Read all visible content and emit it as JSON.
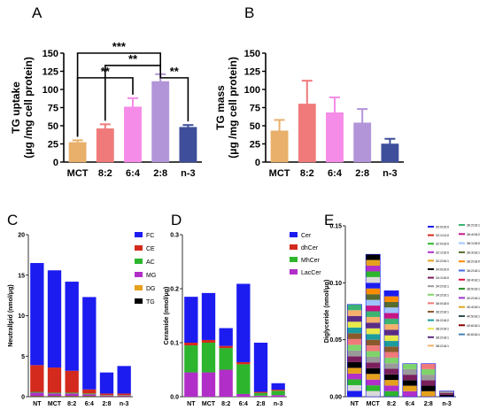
{
  "chart_data": [
    {
      "panel": "A",
      "type": "bar",
      "ylabel_lines": [
        "TG uptake",
        "(μg /mg cell protein)"
      ],
      "categories": [
        "MCT",
        "8:2",
        "6:4",
        "2:8",
        "n-3"
      ],
      "values": [
        27,
        46,
        76,
        111,
        48
      ],
      "errors": [
        3,
        6,
        12,
        10,
        3
      ],
      "colors": [
        "#E8B06A",
        "#F07A7A",
        "#F58CE8",
        "#B294D9",
        "#3E4E9A"
      ],
      "ylim": [
        0,
        150
      ],
      "yticks": [
        0,
        25,
        50,
        75,
        100,
        125,
        150
      ],
      "significance": [
        {
          "from": 0,
          "to": 3,
          "label": "***",
          "level": 150
        },
        {
          "from": 1,
          "to": 3,
          "label": "**",
          "level": 133
        },
        {
          "from": 0,
          "to": 2,
          "label": "**",
          "level": 116
        },
        {
          "from": 3,
          "to": 4,
          "label": "**",
          "level": 116
        }
      ]
    },
    {
      "panel": "B",
      "type": "bar",
      "ylabel_lines": [
        "TG mass",
        "(μg /mg cell protein)"
      ],
      "categories": [
        "MCT",
        "8:2",
        "6:4",
        "2:8",
        "n-3"
      ],
      "values": [
        43,
        80,
        68,
        54,
        25
      ],
      "errors": [
        15,
        32,
        21,
        19,
        7
      ],
      "colors": [
        "#E8B06A",
        "#F07A7A",
        "#F58CE8",
        "#B294D9",
        "#3E4E9A"
      ],
      "ylim": [
        0,
        150
      ],
      "yticks": [
        0,
        25,
        50,
        75,
        100,
        125,
        150
      ]
    },
    {
      "panel": "C",
      "type": "bar",
      "stacked": true,
      "ylabel": "Neutrallpid (nmol/μg)",
      "categories": [
        "NT",
        "MCT",
        "8:2",
        "6:4",
        "2:8",
        "n-3"
      ],
      "ylim": [
        0,
        20
      ],
      "yticks": [
        0,
        5,
        10,
        15,
        20
      ],
      "series": [
        {
          "name": "TG",
          "color": "#000000",
          "values": [
            0.05,
            0.05,
            0.05,
            0.05,
            0.02,
            0.02
          ]
        },
        {
          "name": "DG",
          "color": "#E6A11C",
          "values": [
            0.05,
            0.05,
            0.05,
            0.05,
            0.02,
            0.02
          ]
        },
        {
          "name": "MG",
          "color": "#B12FC8",
          "values": [
            0.4,
            0.3,
            0.3,
            0.2,
            0.1,
            0.1
          ]
        },
        {
          "name": "AC",
          "color": "#2DB52D",
          "values": [
            0.1,
            0.1,
            0.1,
            0.1,
            0.05,
            0.05
          ]
        },
        {
          "name": "CE",
          "color": "#D42A1E",
          "values": [
            3.3,
            3.1,
            2.7,
            0.5,
            0.2,
            0.2
          ]
        },
        {
          "name": "FC",
          "color": "#1C1CF0",
          "values": [
            12.6,
            12.0,
            11.0,
            11.4,
            2.6,
            3.4
          ]
        }
      ]
    },
    {
      "panel": "D",
      "type": "bar",
      "stacked": true,
      "ylabel": "Ceramide (nmol/μg)",
      "categories": [
        "NT",
        "MCT",
        "8:2",
        "6:4",
        "2:8",
        "n-3"
      ],
      "ylim": [
        0,
        0.3
      ],
      "yticks": [
        0.0,
        0.1,
        0.2,
        0.3
      ],
      "series": [
        {
          "name": "LacCer",
          "color": "#B12FC8",
          "values": [
            0.045,
            0.045,
            0.05,
            0.005,
            0.002,
            0.003
          ]
        },
        {
          "name": "MhCer",
          "color": "#2DB52D",
          "values": [
            0.05,
            0.055,
            0.04,
            0.055,
            0.005,
            0.008
          ]
        },
        {
          "name": "dhCer",
          "color": "#D42A1E",
          "values": [
            0.005,
            0.005,
            0.004,
            0.004,
            0.002,
            0.002
          ]
        },
        {
          "name": "Cer",
          "color": "#1C1CF0",
          "values": [
            0.085,
            0.087,
            0.033,
            0.145,
            0.091,
            0.012
          ]
        }
      ]
    },
    {
      "panel": "E",
      "type": "bar",
      "stacked": true,
      "ylabel": "Diglyceride (nmol/μg)",
      "categories": [
        "NT",
        "MCT",
        "8:2",
        "6:4",
        "2:8",
        "n-3"
      ],
      "ylim": [
        0,
        0.15
      ],
      "yticks": [
        0.0,
        0.05,
        0.1,
        0.15
      ],
      "totals": [
        0.081,
        0.125,
        0.093,
        0.029,
        0.029,
        0.005
      ],
      "segment_colors": [
        "#1C1CF0",
        "#D9D9D9",
        "#2DB52D",
        "#B12FC8",
        "#E6A11C",
        "#000000",
        "#7A1F5C",
        "#9A9A9A",
        "#7FD36B",
        "#F07A7A",
        "#8B5A2B",
        "#1C9C9C",
        "#E8E84A",
        "#5B2C83",
        "#F5B06A",
        "#3CB371",
        "#C71585",
        "#A0C4FF",
        "#556B2F",
        "#FF8C00"
      ],
      "legend_col1": [
        "30:0/16:0",
        "32:1/14:0",
        "32:0/16:0",
        "32:1/16:0",
        "32:2/16:1",
        "34:0/16:0",
        "34:1/16:0",
        "34:2/16:1",
        "34:2/16:1",
        "36:0/18:0",
        "36:2/18:1",
        "36:2/18:2",
        "38:2/18:1",
        "38:2/18:1",
        "38:2/18:1"
      ],
      "legend_col2": [
        "36:2/18:1",
        "36:4/18:2",
        "38:1/18:0",
        "38:3/18:1",
        "38:2/18:0",
        "38:2/18:1",
        "38:4/18:1",
        "38:5/18:1",
        "40:2/18:1",
        "40:4/18:1",
        "40:5/18:1",
        "40:6/18:1",
        "40:6/18:1"
      ],
      "legend_col1_colors": [
        "#1C1CF0",
        "#D42A1E",
        "#2DB52D",
        "#B12FC8",
        "#E6A11C",
        "#000000",
        "#7A1F5C",
        "#9A9A9A",
        "#7FD36B",
        "#F07A7A",
        "#8B5A2B",
        "#1C9C9C",
        "#E8E84A",
        "#5B2C83",
        "#F5B06A"
      ],
      "legend_col2_colors": [
        "#3CB371",
        "#C71585",
        "#A0C4FF",
        "#556B2F",
        "#FF8C00",
        "#4169E1",
        "#DC143C",
        "#228B22",
        "#9932CC",
        "#DAA520",
        "#2F4F4F",
        "#8B0000",
        "#4682B4"
      ]
    }
  ]
}
